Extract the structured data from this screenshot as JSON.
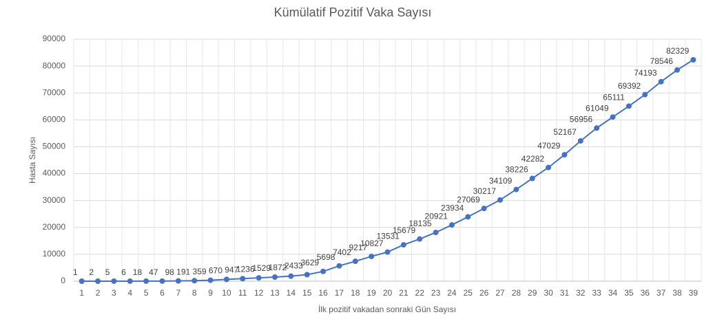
{
  "chart_data": {
    "type": "line",
    "title": "Kümülatif Pozitif Vaka Sayısı",
    "x_label": "İlk pozitif vakadan sonraki Gün Sayısı",
    "y_label": "Hasta Sayısı",
    "categories": [
      "1",
      "2",
      "3",
      "4",
      "5",
      "6",
      "7",
      "8",
      "9",
      "10",
      "11",
      "12",
      "13",
      "14",
      "15",
      "16",
      "17",
      "18",
      "19",
      "20",
      "21",
      "22",
      "23",
      "24",
      "25",
      "26",
      "27",
      "28",
      "29",
      "30",
      "31",
      "32",
      "33",
      "34",
      "35",
      "36",
      "37",
      "38",
      "39"
    ],
    "series": [
      {
        "name": "Hasta Sayısı",
        "color": "#4472c4",
        "values": [
          1,
          2,
          5,
          6,
          18,
          47,
          98,
          191,
          359,
          670,
          947,
          1236,
          1529,
          1872,
          2433,
          3629,
          5698,
          7402,
          9217,
          10827,
          13531,
          15679,
          18135,
          20921,
          23934,
          27069,
          30217,
          34109,
          38226,
          42282,
          47029,
          52167,
          56956,
          61049,
          65111,
          69392,
          74193,
          78546,
          82329
        ]
      }
    ],
    "ylim": [
      0,
      90000
    ],
    "yticks": [
      0,
      10000,
      20000,
      30000,
      40000,
      50000,
      60000,
      70000,
      80000,
      90000
    ],
    "grid": true
  }
}
